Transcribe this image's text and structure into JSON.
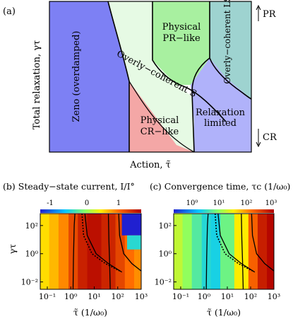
{
  "chart_data": [
    {
      "type": "area",
      "panel_label": "(a)",
      "xlabel": "Action, τ̃",
      "ylabel": "Total relaxation, γτ",
      "side_labels": [
        "PR",
        "CR"
      ],
      "regions": [
        {
          "name": "Zeno (overdamped)",
          "color": "#7d80f4"
        },
        {
          "name": "Overly−coherent S",
          "color": "#e6fae4"
        },
        {
          "name": "Physical PR−like",
          "color": "#a8f0a0"
        },
        {
          "name": "Overly−coherent LSR",
          "color": "#9ed3d0"
        },
        {
          "name": "Physical CR−like",
          "color": "#f4a7a6"
        },
        {
          "name": "Relaxation limited",
          "color": "#b0b2fa"
        }
      ]
    },
    {
      "type": "heatmap",
      "panel_label": "(b)",
      "title": "Steady−state current, I/I°",
      "xlabel": "τ̃ (1/ω₀)",
      "ylabel": "γτ",
      "x_ticks": [
        "10⁻¹",
        "10⁰",
        "10¹",
        "10²",
        "10³"
      ],
      "y_ticks": [
        "10²",
        "10⁰",
        "10⁻²"
      ],
      "xlim": [
        0.05,
        1000
      ],
      "ylim": [
        0.003,
        700
      ],
      "log_x": true,
      "log_y": true,
      "colorbar": {
        "ticks": [
          "-1",
          "0",
          "1"
        ],
        "range": [
          -1.3,
          1.3
        ]
      },
      "columns": [
        {
          "x_from": 0.05,
          "x_to": 0.12,
          "value": 0.32
        },
        {
          "x_from": 0.12,
          "x_to": 0.3,
          "value": 0.45
        },
        {
          "x_from": 0.3,
          "x_to": 0.8,
          "value": 0.62
        },
        {
          "x_from": 0.8,
          "x_to": 2,
          "value": 0.9
        },
        {
          "x_from": 2,
          "x_to": 5,
          "value": 1.12
        },
        {
          "x_from": 5,
          "x_to": 20,
          "value": 1.22
        },
        {
          "x_from": 20,
          "x_to": 80,
          "value": 1.1
        },
        {
          "x_from": 80,
          "x_to": 200,
          "value": 0.92
        },
        {
          "x_from": 200,
          "x_to": 500,
          "value": 0.72
        },
        {
          "x_from": 500,
          "x_to": 1000,
          "value": 0.6
        }
      ],
      "patches": [
        {
          "x_from": 150,
          "x_to": 1000,
          "y_from": 20,
          "y_to": 700,
          "value": -1.3
        },
        {
          "x_from": 250,
          "x_to": 1000,
          "y_from": 2,
          "y_to": 20,
          "value": -0.5
        }
      ]
    },
    {
      "type": "heatmap",
      "panel_label": "(c)",
      "title": "Convergence time, τc (1/ω₀)",
      "xlabel": "τ̃ (1/ω₀)",
      "ylabel": "",
      "x_ticks": [
        "10⁻¹",
        "10⁰",
        "10¹",
        "10²",
        "10³"
      ],
      "y_ticks": [
        "10²",
        "10⁰",
        "10⁻²"
      ],
      "xlim": [
        0.05,
        1000
      ],
      "ylim": [
        0.003,
        700
      ],
      "log_x": true,
      "log_y": true,
      "colorbar": {
        "ticks": [
          "10⁰",
          "10¹",
          "10²",
          "10³"
        ],
        "range": [
          0.3,
          1000
        ],
        "log": true
      },
      "columns": [
        {
          "x_from": 0.05,
          "x_to": 0.12,
          "value": 20
        },
        {
          "x_from": 0.12,
          "x_to": 0.3,
          "value": 12
        },
        {
          "x_from": 0.3,
          "x_to": 0.8,
          "value": 6
        },
        {
          "x_from": 0.8,
          "x_to": 2,
          "value": 3.5
        },
        {
          "x_from": 2,
          "x_to": 5,
          "value": 3
        },
        {
          "x_from": 5,
          "x_to": 20,
          "value": 8
        },
        {
          "x_from": 20,
          "x_to": 80,
          "value": 40
        },
        {
          "x_from": 80,
          "x_to": 200,
          "value": 200
        },
        {
          "x_from": 200,
          "x_to": 500,
          "value": 600
        },
        {
          "x_from": 500,
          "x_to": 1000,
          "value": 900
        }
      ]
    }
  ],
  "boundary_curves": {
    "solid": [
      [
        [
          1.5,
          700
        ],
        [
          1.4,
          100
        ],
        [
          1.3,
          0.5
        ],
        [
          1.25,
          0.003
        ]
      ],
      [
        [
          4,
          700
        ],
        [
          5,
          20
        ],
        [
          12,
          1
        ],
        [
          40,
          0.2
        ],
        [
          150,
          0.05
        ]
      ],
      [
        [
          40,
          700
        ],
        [
          42,
          10
        ],
        [
          45,
          0.3
        ],
        [
          48,
          0.003
        ]
      ],
      [
        [
          110,
          700
        ],
        [
          120,
          20
        ],
        [
          180,
          1
        ],
        [
          400,
          0.2
        ],
        [
          1000,
          0.06
        ]
      ]
    ],
    "dotted": [
      [
        [
          3,
          700
        ],
        [
          3.5,
          20
        ],
        [
          8,
          1
        ],
        [
          30,
          0.2
        ],
        [
          120,
          0.06
        ]
      ]
    ]
  }
}
